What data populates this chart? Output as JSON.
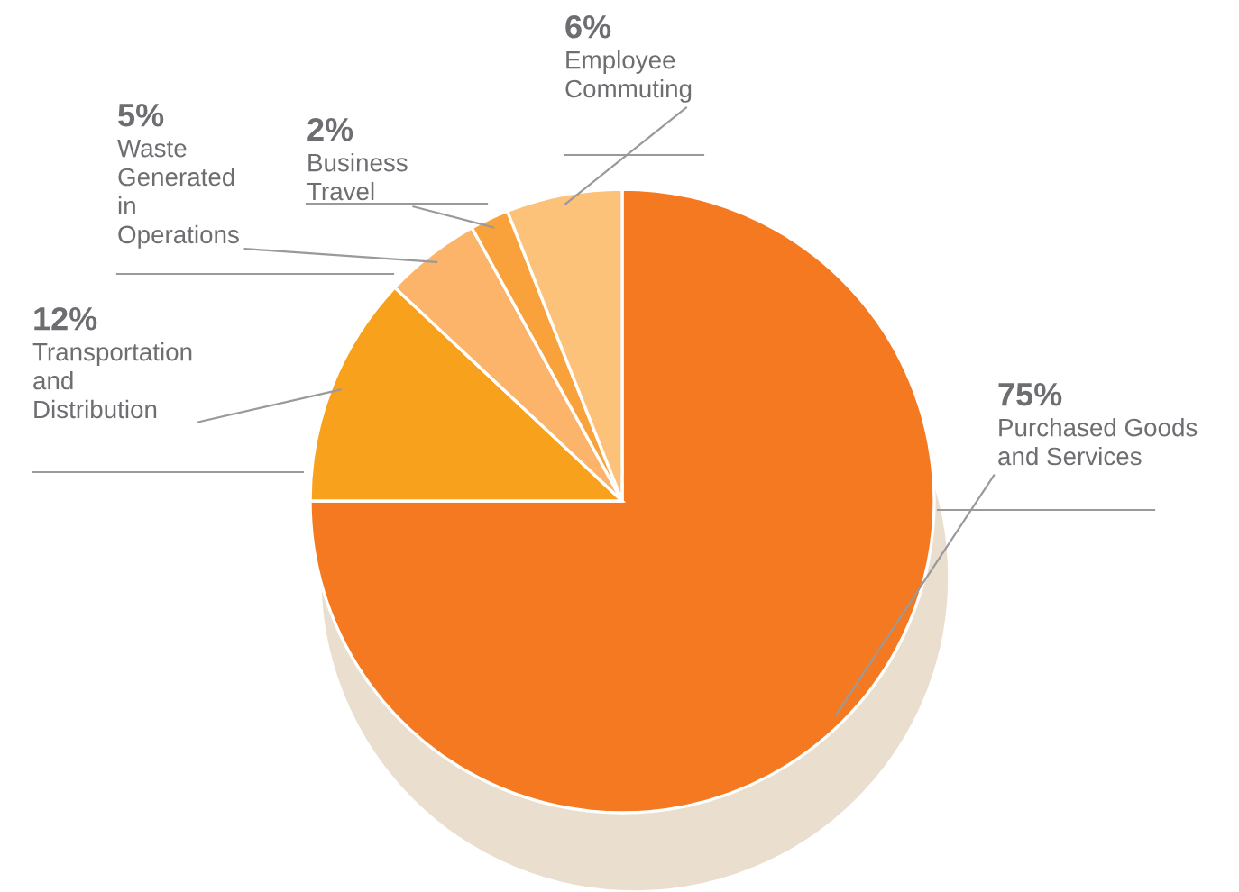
{
  "chart_data": {
    "type": "pie",
    "categories": [
      "Purchased Goods and Services",
      "Transportation and Distribution",
      "Waste Generated in Operations",
      "Business Travel",
      "Employee Commuting"
    ],
    "values": [
      75,
      12,
      5,
      2,
      6
    ],
    "value_labels": [
      "75%",
      "12%",
      "5%",
      "2%",
      "6%"
    ],
    "colors": [
      "#f47920",
      "#f7a11c",
      "#fbb46a",
      "#f9a23b",
      "#fdc27a"
    ]
  }
}
